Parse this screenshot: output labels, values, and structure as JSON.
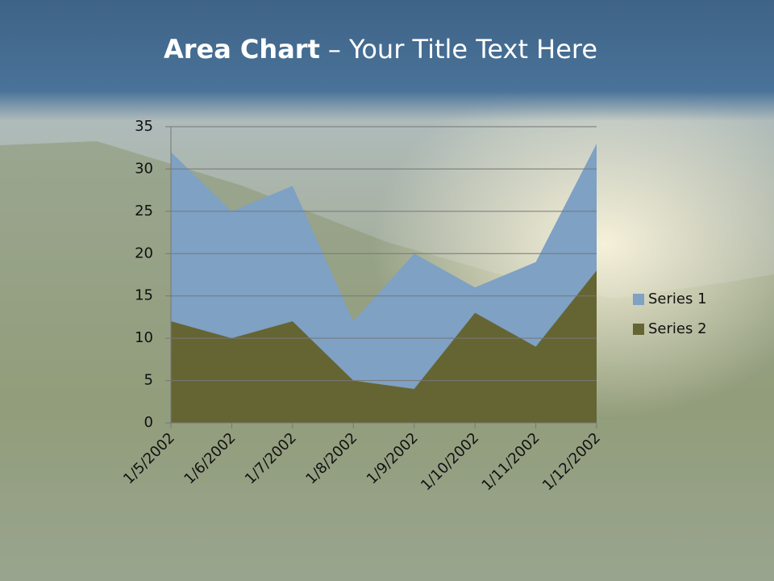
{
  "chart_data": {
    "type": "area",
    "title": [
      "Area Chart",
      "– Your Title Text Here"
    ],
    "categories": [
      "1/5/2002",
      "1/6/2002",
      "1/7/2002",
      "1/8/2002",
      "1/9/2002",
      "1/10/2002",
      "1/11/2002",
      "1/12/2002"
    ],
    "series": [
      {
        "name": "Series 1",
        "color": "#7ea1c4",
        "values": [
          32,
          25,
          28,
          12,
          20,
          16,
          19,
          33
        ]
      },
      {
        "name": "Series 2",
        "color": "#656533",
        "values": [
          12,
          10,
          12,
          5,
          4,
          13,
          9,
          18
        ]
      }
    ],
    "ylim": [
      0,
      35
    ],
    "yticks": [
      0,
      5,
      10,
      15,
      20,
      25,
      30,
      35
    ],
    "grid": true,
    "legend": "right"
  }
}
